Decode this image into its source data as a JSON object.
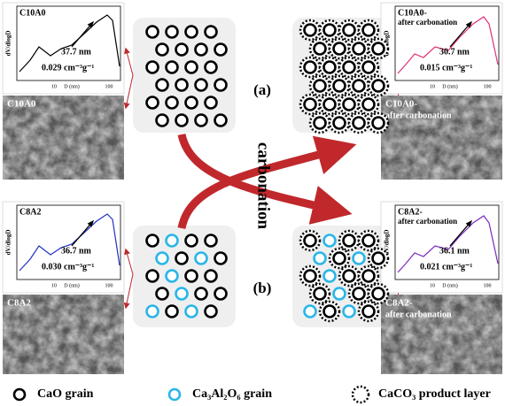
{
  "panels": [
    {
      "label": "(a)",
      "before": {
        "inset_title": "C10A0",
        "pore_size": "37.7 nm",
        "pore_volume": "0.029 cm⁻³g⁻¹",
        "y_axis": "dV/dlogD",
        "x_axis": "D (nm)",
        "x_ticks": [
          "10",
          "100"
        ],
        "sem_label": "C10A0"
      },
      "after": {
        "inset_title": "C10A0-",
        "inset_subtitle": "after carbonation",
        "pore_size": "30.7 nm",
        "pore_volume": "0.015 cm⁻³g⁻¹",
        "y_axis": "dV/dlogD",
        "x_axis": "D (nm)",
        "x_ticks": [
          "10",
          "100"
        ],
        "sem_label": "C10A0-",
        "sem_sublabel": "after carbonation"
      }
    },
    {
      "label": "(b)",
      "before": {
        "inset_title": "C8A2",
        "pore_size": "36.7 nm",
        "pore_volume": "0.030 cm⁻³g⁻¹",
        "y_axis": "dV/dlogD",
        "x_axis": "D (nm)",
        "x_ticks": [
          "10",
          "100"
        ],
        "sem_label": "C8A2"
      },
      "after": {
        "inset_title": "C8A2-",
        "inset_subtitle": "after carbonation",
        "pore_size": "36.1 nm",
        "pore_volume": "0.021 cm⁻³g⁻¹",
        "y_axis": "dV/dlogD",
        "x_axis": "D (nm)",
        "x_ticks": [
          "10",
          "100"
        ],
        "sem_label": "C8A2-",
        "sem_sublabel": "after carbonation"
      }
    }
  ],
  "process_label": "carbonation",
  "legend": [
    "CaO grain",
    "Ca₃Al₂O₆ grain",
    "CaCO₃ product layer"
  ]
}
